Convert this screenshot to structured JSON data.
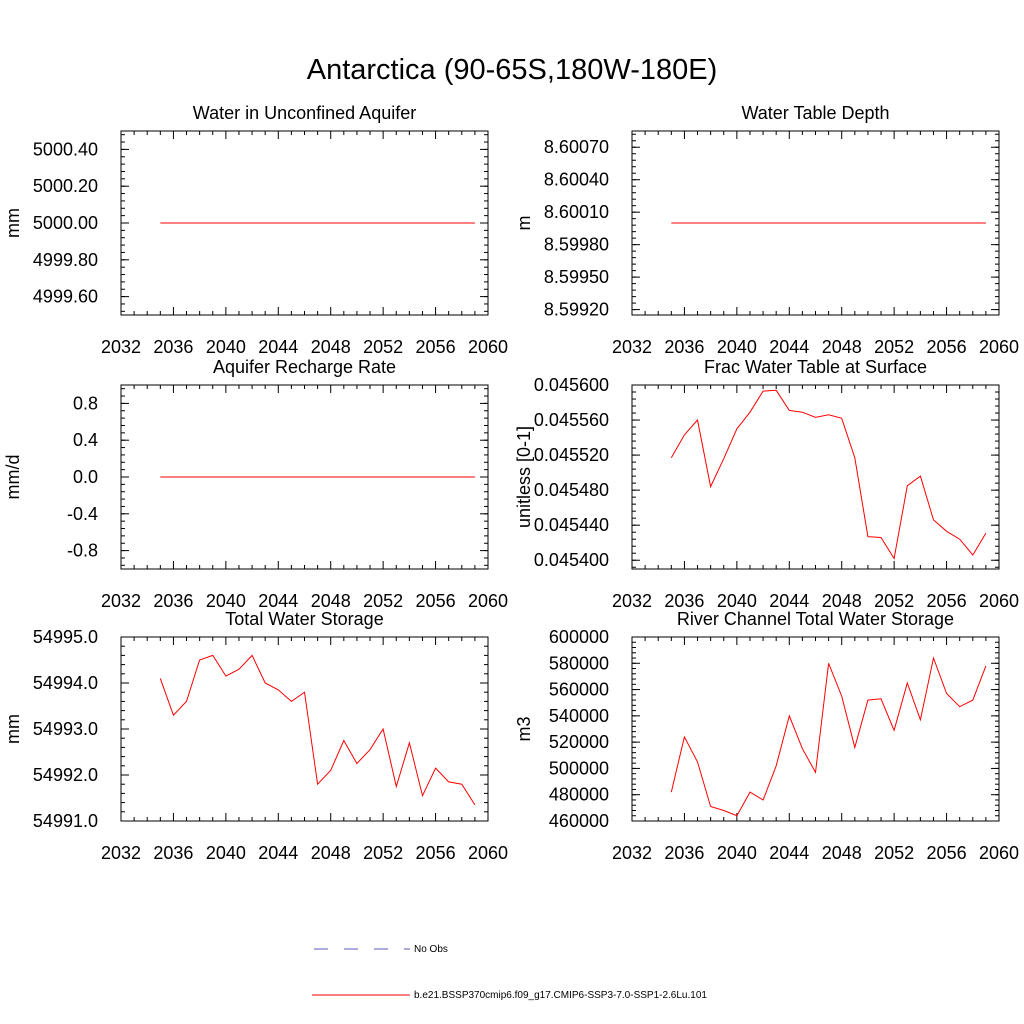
{
  "main_title": "Antarctica (90-65S,180W-180E)",
  "colors": {
    "series": "#ff0000",
    "obs": "#5a5ab4",
    "frame": "#000000"
  },
  "legend": {
    "obs_label": "No Obs",
    "model_label": "b.e21.BSSP370cmip6.f09_g17.CMIP6-SSP3-7.0-SSP1-2.6Lu.101"
  },
  "chart_data": [
    {
      "type": "line",
      "title": "Water in Unconfined Aquifer",
      "ylabel": "mm",
      "xlim": [
        2032,
        2060
      ],
      "ylim": [
        4999.5,
        5000.5
      ],
      "xticks": [
        "2032",
        "2036",
        "2040",
        "2044",
        "2048",
        "2052",
        "2056",
        "2060"
      ],
      "yticks": [
        "4999.60",
        "4999.80",
        "5000.00",
        "5000.20",
        "5000.40"
      ],
      "ytick_values": [
        4999.6,
        4999.8,
        5000.0,
        5000.2,
        5000.4
      ],
      "x": [
        2035,
        2036,
        2037,
        2038,
        2039,
        2040,
        2041,
        2042,
        2043,
        2044,
        2045,
        2046,
        2047,
        2048,
        2049,
        2050,
        2051,
        2052,
        2053,
        2054,
        2055,
        2056,
        2057,
        2058,
        2059
      ],
      "values": [
        5000,
        5000,
        5000,
        5000,
        5000,
        5000,
        5000,
        5000,
        5000,
        5000,
        5000,
        5000,
        5000,
        5000,
        5000,
        5000,
        5000,
        5000,
        5000,
        5000,
        5000,
        5000,
        5000,
        5000,
        5000
      ]
    },
    {
      "type": "line",
      "title": "Water Table Depth",
      "ylabel": "m",
      "xlim": [
        2032,
        2060
      ],
      "ylim": [
        8.59915,
        8.60085
      ],
      "xticks": [
        "2032",
        "2036",
        "2040",
        "2044",
        "2048",
        "2052",
        "2056",
        "2060"
      ],
      "yticks": [
        "8.59920",
        "8.59950",
        "8.59980",
        "8.60010",
        "8.60040",
        "8.60070"
      ],
      "ytick_values": [
        8.5992,
        8.5995,
        8.5998,
        8.6001,
        8.6004,
        8.6007
      ],
      "x": [
        2035,
        2036,
        2037,
        2038,
        2039,
        2040,
        2041,
        2042,
        2043,
        2044,
        2045,
        2046,
        2047,
        2048,
        2049,
        2050,
        2051,
        2052,
        2053,
        2054,
        2055,
        2056,
        2057,
        2058,
        2059
      ],
      "values": [
        8.6,
        8.6,
        8.6,
        8.6,
        8.6,
        8.6,
        8.6,
        8.6,
        8.6,
        8.6,
        8.6,
        8.6,
        8.6,
        8.6,
        8.6,
        8.6,
        8.6,
        8.6,
        8.6,
        8.6,
        8.6,
        8.6,
        8.6,
        8.6,
        8.6
      ]
    },
    {
      "type": "line",
      "title": "Aquifer Recharge Rate",
      "ylabel": "mm/d",
      "xlim": [
        2032,
        2060
      ],
      "ylim": [
        -1.0,
        1.0
      ],
      "xticks": [
        "2032",
        "2036",
        "2040",
        "2044",
        "2048",
        "2052",
        "2056",
        "2060"
      ],
      "yticks": [
        "-0.8",
        "-0.4",
        "0.0",
        "0.4",
        "0.8"
      ],
      "ytick_values": [
        -0.8,
        -0.4,
        0.0,
        0.4,
        0.8
      ],
      "x": [
        2035,
        2036,
        2037,
        2038,
        2039,
        2040,
        2041,
        2042,
        2043,
        2044,
        2045,
        2046,
        2047,
        2048,
        2049,
        2050,
        2051,
        2052,
        2053,
        2054,
        2055,
        2056,
        2057,
        2058,
        2059
      ],
      "values": [
        0,
        0,
        0,
        0,
        0,
        0,
        0,
        0,
        0,
        0,
        0,
        0,
        0,
        0,
        0,
        0,
        0,
        0,
        0,
        0,
        0,
        0,
        0,
        0,
        0
      ]
    },
    {
      "type": "line",
      "title": "Frac Water Table at Surface",
      "ylabel": "unitless [0-1]",
      "xlim": [
        2032,
        2060
      ],
      "ylim": [
        0.04539,
        0.0456
      ],
      "xticks": [
        "2032",
        "2036",
        "2040",
        "2044",
        "2048",
        "2052",
        "2056",
        "2060"
      ],
      "yticks": [
        "0.045400",
        "0.045440",
        "0.045480",
        "0.045520",
        "0.045560",
        "0.045600"
      ],
      "ytick_values": [
        0.0454,
        0.04544,
        0.04548,
        0.04552,
        0.04556,
        0.0456
      ],
      "x": [
        2035,
        2036,
        2037,
        2038,
        2039,
        2040,
        2041,
        2042,
        2043,
        2044,
        2045,
        2046,
        2047,
        2048,
        2049,
        2050,
        2051,
        2052,
        2053,
        2054,
        2055,
        2056,
        2057,
        2058,
        2059
      ],
      "values": [
        0.045517,
        0.045543,
        0.04556,
        0.045484,
        0.045516,
        0.04555,
        0.045569,
        0.045593,
        0.045594,
        0.045571,
        0.045569,
        0.045563,
        0.045566,
        0.045562,
        0.045517,
        0.045427,
        0.045426,
        0.045402,
        0.045485,
        0.045496,
        0.045446,
        0.045433,
        0.045424,
        0.045406,
        0.045431
      ]
    },
    {
      "type": "line",
      "title": "Total Water Storage",
      "ylabel": "mm",
      "xlim": [
        2032,
        2060
      ],
      "ylim": [
        54991.0,
        54995.0
      ],
      "xticks": [
        "2032",
        "2036",
        "2040",
        "2044",
        "2048",
        "2052",
        "2056",
        "2060"
      ],
      "yticks": [
        "54991.0",
        "54992.0",
        "54993.0",
        "54994.0",
        "54995.0"
      ],
      "ytick_values": [
        54991.0,
        54992.0,
        54993.0,
        54994.0,
        54995.0
      ],
      "x": [
        2035,
        2036,
        2037,
        2038,
        2039,
        2040,
        2041,
        2042,
        2043,
        2044,
        2045,
        2046,
        2047,
        2048,
        2049,
        2050,
        2051,
        2052,
        2053,
        2054,
        2055,
        2056,
        2057,
        2058,
        2059
      ],
      "values": [
        54994.1,
        54993.3,
        54993.6,
        54994.5,
        54994.6,
        54994.15,
        54994.3,
        54994.6,
        54994.0,
        54993.85,
        54993.6,
        54993.8,
        54991.8,
        54992.1,
        54992.75,
        54992.25,
        54992.55,
        54993.0,
        54991.75,
        54992.7,
        54991.55,
        54992.15,
        54991.85,
        54991.8,
        54991.35
      ]
    },
    {
      "type": "line",
      "title": "River Channel Total Water Storage",
      "ylabel": "m3",
      "xlim": [
        2032,
        2060
      ],
      "ylim": [
        460000,
        600000
      ],
      "xticks": [
        "2032",
        "2036",
        "2040",
        "2044",
        "2048",
        "2052",
        "2056",
        "2060"
      ],
      "yticks": [
        "460000",
        "480000",
        "500000",
        "520000",
        "540000",
        "560000",
        "580000",
        "600000"
      ],
      "ytick_values": [
        460000,
        480000,
        500000,
        520000,
        540000,
        560000,
        580000,
        600000
      ],
      "x": [
        2035,
        2036,
        2037,
        2038,
        2039,
        2040,
        2041,
        2042,
        2043,
        2044,
        2045,
        2046,
        2047,
        2048,
        2049,
        2050,
        2051,
        2052,
        2053,
        2054,
        2055,
        2056,
        2057,
        2058,
        2059
      ],
      "values": [
        482000,
        524000,
        505000,
        471000,
        468000,
        464000,
        482000,
        476000,
        502000,
        540000,
        515000,
        497000,
        580000,
        555000,
        516000,
        552000,
        553000,
        529000,
        565000,
        537000,
        584000,
        557000,
        547000,
        552000,
        578000
      ]
    }
  ]
}
